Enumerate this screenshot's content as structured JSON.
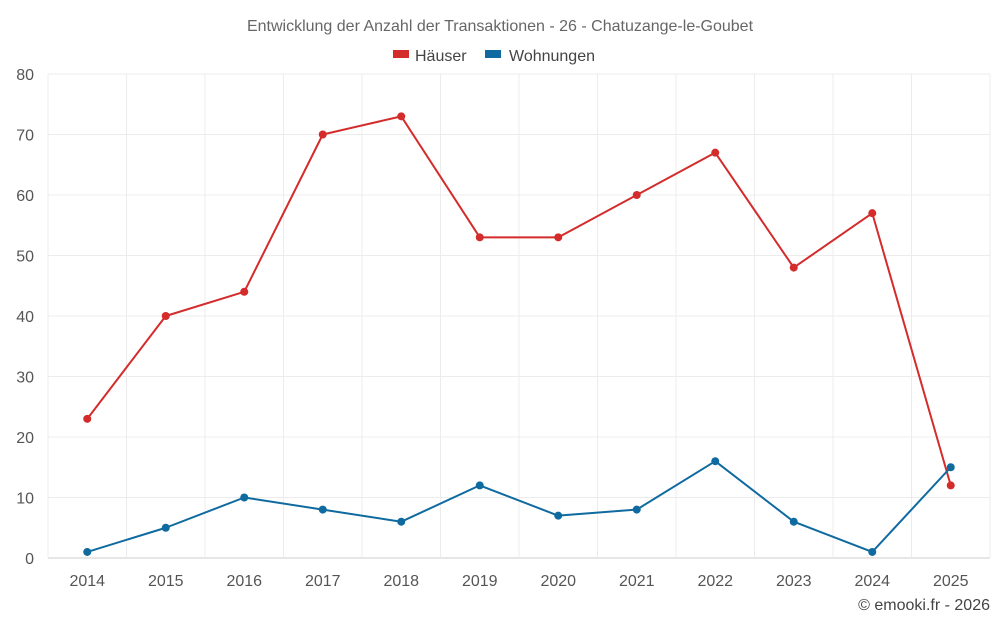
{
  "chart_data": {
    "type": "line",
    "title": "Entwicklung der Anzahl der Transaktionen - 26 - Chatuzange-le-Goubet",
    "categories": [
      "2014",
      "2015",
      "2016",
      "2017",
      "2018",
      "2019",
      "2020",
      "2021",
      "2022",
      "2023",
      "2024",
      "2025"
    ],
    "series": [
      {
        "name": "Häuser",
        "color": "#d42b2b",
        "values": [
          23,
          40,
          44,
          70,
          73,
          53,
          53,
          60,
          67,
          48,
          57,
          12
        ]
      },
      {
        "name": "Wohnungen",
        "color": "#0f6aa0",
        "values": [
          1,
          5,
          10,
          8,
          6,
          12,
          7,
          8,
          16,
          6,
          1,
          15
        ]
      }
    ],
    "ylim": [
      0,
      80
    ],
    "yticks": [
      0,
      10,
      20,
      30,
      40,
      50,
      60,
      70,
      80
    ],
    "grid": true,
    "legend_position": "top-center",
    "xlabel": "",
    "ylabel": ""
  },
  "credit": "© emooki.fr - 2026"
}
